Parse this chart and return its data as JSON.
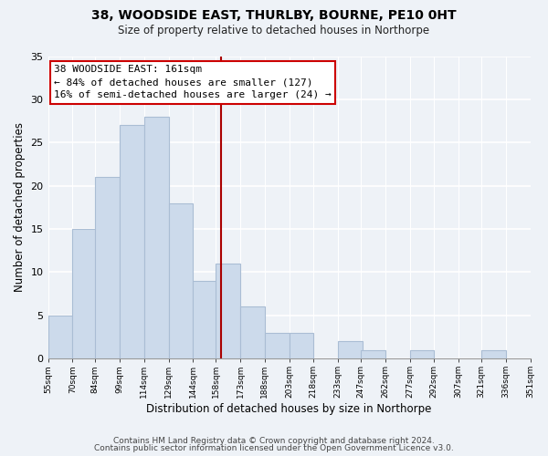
{
  "title": "38, WOODSIDE EAST, THURLBY, BOURNE, PE10 0HT",
  "subtitle": "Size of property relative to detached houses in Northorpe",
  "xlabel": "Distribution of detached houses by size in Northorpe",
  "ylabel": "Number of detached properties",
  "bar_color": "#ccdaeb",
  "bar_edge_color": "#aabdd4",
  "background_color": "#eef2f7",
  "vline_x": 161,
  "vline_color": "#aa0000",
  "annotation_title": "38 WOODSIDE EAST: 161sqm",
  "annotation_line1": "← 84% of detached houses are smaller (127)",
  "annotation_line2": "16% of semi-detached houses are larger (24) →",
  "annotation_box_color": "#ffffff",
  "annotation_box_edge": "#cc0000",
  "bins_left": [
    55,
    70,
    84,
    99,
    114,
    129,
    144,
    158,
    173,
    188,
    203,
    218,
    233,
    247,
    262,
    277,
    292,
    307,
    321,
    336
  ],
  "bin_width": 15,
  "counts": [
    5,
    15,
    21,
    27,
    28,
    18,
    9,
    11,
    6,
    3,
    3,
    0,
    2,
    1,
    0,
    1,
    0,
    0,
    1,
    0
  ],
  "tick_labels": [
    "55sqm",
    "70sqm",
    "84sqm",
    "99sqm",
    "114sqm",
    "129sqm",
    "144sqm",
    "158sqm",
    "173sqm",
    "188sqm",
    "203sqm",
    "218sqm",
    "233sqm",
    "247sqm",
    "262sqm",
    "277sqm",
    "292sqm",
    "307sqm",
    "321sqm",
    "336sqm",
    "351sqm"
  ],
  "ylim": [
    0,
    35
  ],
  "yticks": [
    0,
    5,
    10,
    15,
    20,
    25,
    30,
    35
  ],
  "footer1": "Contains HM Land Registry data © Crown copyright and database right 2024.",
  "footer2": "Contains public sector information licensed under the Open Government Licence v3.0."
}
